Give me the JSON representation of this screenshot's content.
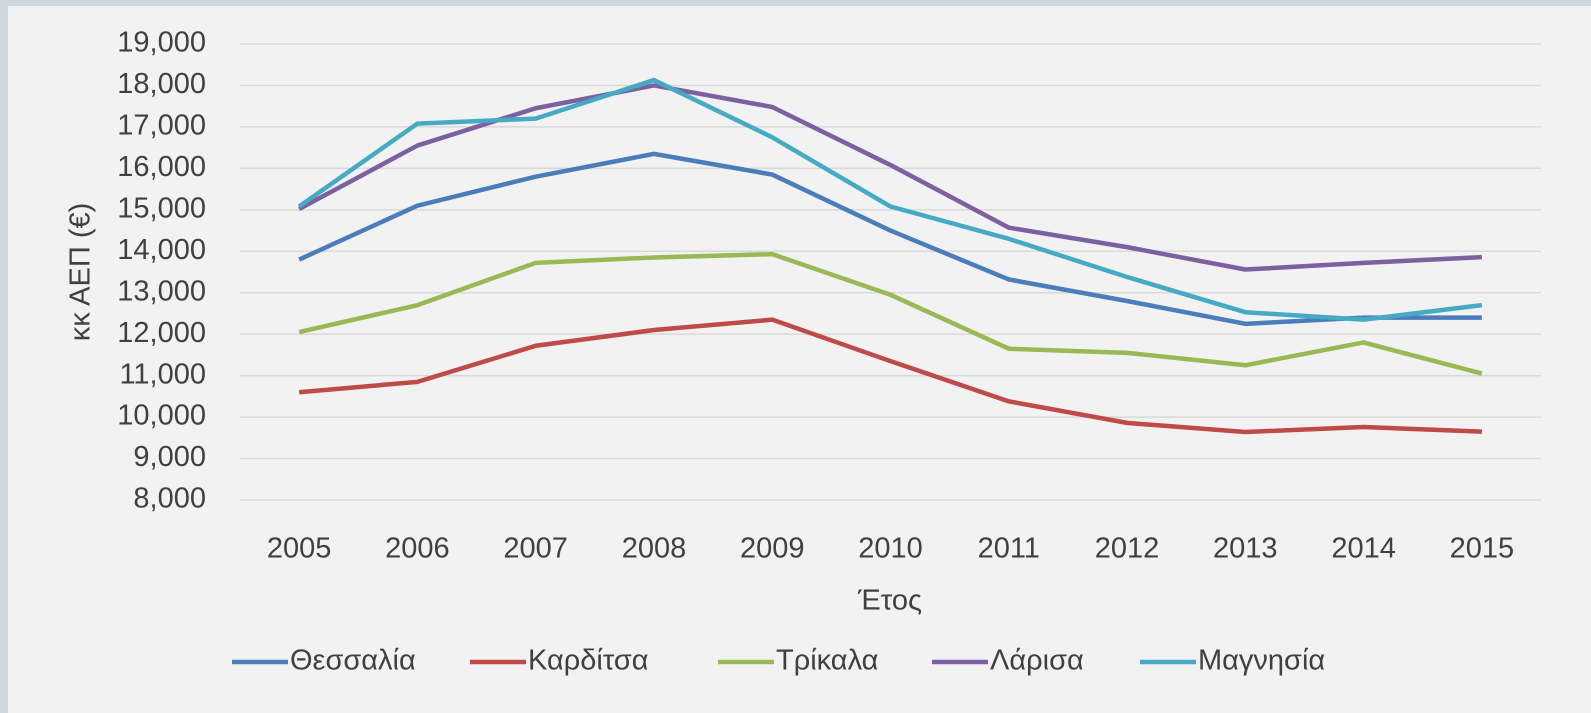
{
  "chart_data": {
    "type": "line",
    "y_label": "κκ ΑΕΠ (€)",
    "x_label": "Έτος",
    "categories": [
      "2005",
      "2006",
      "2007",
      "2008",
      "2009",
      "2010",
      "2011",
      "2012",
      "2013",
      "2014",
      "2015"
    ],
    "series": [
      {
        "name": "Θεσσαλία",
        "color": "#4a7ebb",
        "values": [
          13800,
          15100,
          15800,
          16350,
          15850,
          14500,
          13320,
          12800,
          12250,
          12400,
          12400
        ]
      },
      {
        "name": "Καρδίτσα",
        "color": "#be4b48",
        "values": [
          10600,
          10850,
          11720,
          12100,
          12350,
          11350,
          10380,
          9860,
          9640,
          9760,
          9650
        ]
      },
      {
        "name": "Τρίκαλα",
        "color": "#98b954",
        "values": [
          12050,
          12700,
          13720,
          13850,
          13930,
          12950,
          11650,
          11550,
          11250,
          11800,
          11050
        ]
      },
      {
        "name": "Λάρισα",
        "color": "#7d60a0",
        "values": [
          15020,
          16550,
          17450,
          18000,
          17480,
          16080,
          14570,
          14100,
          13560,
          13720,
          13860
        ]
      },
      {
        "name": "Μαγνησία",
        "color": "#46aac5",
        "values": [
          15080,
          17080,
          17200,
          18130,
          16750,
          15080,
          14300,
          13380,
          12530,
          12350,
          12700
        ]
      }
    ],
    "ylim": [
      8000,
      19000
    ],
    "yticks": [
      {
        "value": 8000,
        "label": "8,000"
      },
      {
        "value": 9000,
        "label": "9,000"
      },
      {
        "value": 10000,
        "label": "10,000"
      },
      {
        "value": 11000,
        "label": "11,000"
      },
      {
        "value": 12000,
        "label": "12,000"
      },
      {
        "value": 13000,
        "label": "13,000"
      },
      {
        "value": 14000,
        "label": "14,000"
      },
      {
        "value": 15000,
        "label": "15,000"
      },
      {
        "value": 16000,
        "label": "16,000"
      },
      {
        "value": 17000,
        "label": "17,000"
      },
      {
        "value": 18000,
        "label": "18,000"
      },
      {
        "value": 19000,
        "label": "19,000"
      }
    ],
    "grid": true,
    "legend": "bottom"
  }
}
